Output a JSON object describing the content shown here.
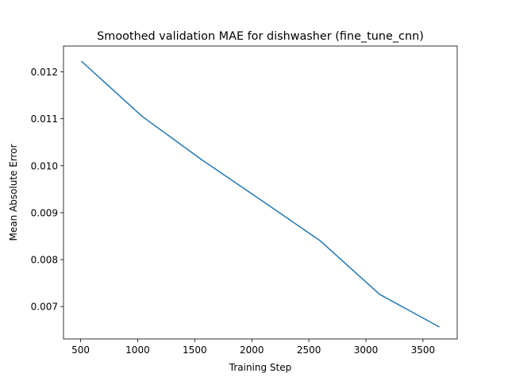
{
  "chart_data": {
    "type": "line",
    "title": "Smoothed validation MAE for dishwasher (fine_tune_cnn)",
    "xlabel": "Training Step",
    "ylabel": "Mean Absolute Error",
    "xlim": [
      350,
      3800
    ],
    "ylim": [
      0.00631,
      0.01255
    ],
    "xticks": [
      500,
      1000,
      1500,
      2000,
      2500,
      3000,
      3500
    ],
    "xtick_labels": [
      "500",
      "1000",
      "1500",
      "2000",
      "2500",
      "3000",
      "3500"
    ],
    "yticks": [
      0.007,
      0.008,
      0.009,
      0.01,
      0.011,
      0.012
    ],
    "ytick_labels": [
      "0.007",
      "0.008",
      "0.009",
      "0.010",
      "0.011",
      "0.012"
    ],
    "grid": false,
    "series": [
      {
        "color": "#1f77b4",
        "x": [
          510,
          1040,
          1560,
          2080,
          2600,
          3120,
          3640
        ],
        "y": [
          0.01222,
          0.01105,
          0.01013,
          0.00927,
          0.0084,
          0.00726,
          0.00657
        ]
      }
    ]
  }
}
